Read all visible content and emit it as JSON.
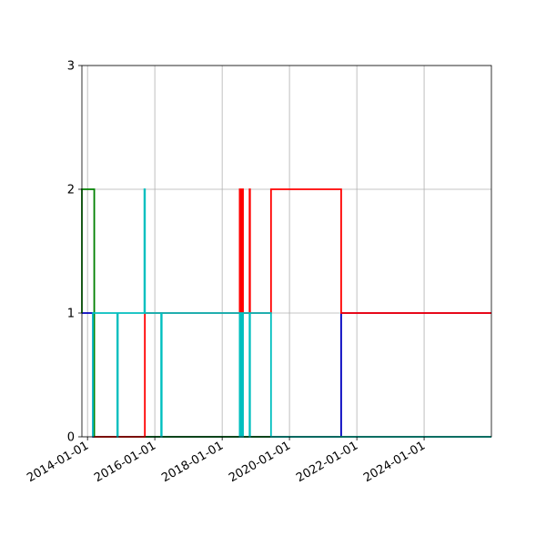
{
  "chart_data": {
    "type": "line",
    "step": true,
    "title": "",
    "xlabel": "",
    "ylabel": "",
    "grid": true,
    "legend": "none",
    "xlim": [
      "2013-11-01",
      "2025-12-31"
    ],
    "ylim": [
      0,
      3
    ],
    "x_ticks": [
      "2014-01-01",
      "2016-01-01",
      "2018-01-01",
      "2020-01-01",
      "2022-01-01",
      "2024-01-01"
    ],
    "y_ticks": [
      "0",
      "1",
      "2",
      "3"
    ],
    "series": [
      {
        "color": "#0000bf",
        "points": [
          [
            "2013-11-01",
            1
          ],
          [
            "2014-03-01",
            1
          ],
          [
            "2014-03-01",
            0
          ],
          [
            "2021-07-15",
            0
          ],
          [
            "2021-07-15",
            1
          ],
          [
            "2025-12-31",
            1
          ]
        ]
      },
      {
        "color": "#008000",
        "points": [
          [
            "2013-11-01",
            1
          ],
          [
            "2013-11-01",
            2
          ],
          [
            "2014-03-15",
            2
          ],
          [
            "2014-03-15",
            0
          ],
          [
            "2025-12-31",
            0
          ]
        ]
      },
      {
        "color": "#ff0000",
        "points": [
          [
            "2014-03-15",
            0
          ],
          [
            "2015-09-15",
            0
          ],
          [
            "2015-09-15",
            1
          ],
          [
            "2018-07-10",
            1
          ],
          [
            "2018-07-10",
            2
          ],
          [
            "2018-07-14",
            2
          ],
          [
            "2018-07-14",
            1
          ],
          [
            "2018-07-18",
            1
          ],
          [
            "2018-07-18",
            2
          ],
          [
            "2018-07-22",
            2
          ],
          [
            "2018-07-22",
            1
          ],
          [
            "2018-07-26",
            1
          ],
          [
            "2018-07-26",
            2
          ],
          [
            "2018-07-30",
            2
          ],
          [
            "2018-07-30",
            1
          ],
          [
            "2018-08-03",
            1
          ],
          [
            "2018-08-03",
            2
          ],
          [
            "2018-08-07",
            2
          ],
          [
            "2018-08-07",
            1
          ],
          [
            "2018-08-11",
            1
          ],
          [
            "2018-08-11",
            2
          ],
          [
            "2018-08-15",
            2
          ],
          [
            "2018-08-15",
            1
          ],
          [
            "2018-10-25",
            1
          ],
          [
            "2018-10-25",
            2
          ],
          [
            "2018-10-30",
            2
          ],
          [
            "2018-10-30",
            1
          ],
          [
            "2019-06-15",
            1
          ],
          [
            "2019-06-15",
            2
          ],
          [
            "2021-07-15",
            2
          ],
          [
            "2021-07-15",
            1
          ],
          [
            "2025-12-31",
            1
          ]
        ]
      },
      {
        "color": "#00bfbf",
        "points": [
          [
            "2014-03-01",
            0
          ],
          [
            "2014-03-01",
            1
          ],
          [
            "2014-11-20",
            1
          ],
          [
            "2014-11-20",
            0
          ],
          [
            "2014-11-26",
            0
          ],
          [
            "2014-11-26",
            1
          ],
          [
            "2015-09-10",
            1
          ],
          [
            "2015-09-10",
            2
          ],
          [
            "2015-09-16",
            2
          ],
          [
            "2015-09-16",
            1
          ],
          [
            "2016-03-10",
            1
          ],
          [
            "2016-03-10",
            0
          ],
          [
            "2016-03-16",
            0
          ],
          [
            "2016-03-16",
            1
          ],
          [
            "2018-07-10",
            1
          ],
          [
            "2018-07-10",
            0
          ],
          [
            "2018-07-14",
            0
          ],
          [
            "2018-07-14",
            1
          ],
          [
            "2018-07-18",
            1
          ],
          [
            "2018-07-18",
            0
          ],
          [
            "2018-07-22",
            0
          ],
          [
            "2018-07-22",
            1
          ],
          [
            "2018-07-26",
            1
          ],
          [
            "2018-07-26",
            0
          ],
          [
            "2018-07-30",
            0
          ],
          [
            "2018-07-30",
            1
          ],
          [
            "2018-08-03",
            1
          ],
          [
            "2018-08-03",
            0
          ],
          [
            "2018-08-07",
            0
          ],
          [
            "2018-08-07",
            1
          ],
          [
            "2018-08-11",
            1
          ],
          [
            "2018-08-11",
            0
          ],
          [
            "2018-08-15",
            0
          ],
          [
            "2018-08-15",
            1
          ],
          [
            "2018-10-25",
            1
          ],
          [
            "2018-10-25",
            0
          ],
          [
            "2018-10-30",
            0
          ],
          [
            "2018-10-30",
            1
          ],
          [
            "2019-06-15",
            1
          ],
          [
            "2019-06-15",
            0
          ],
          [
            "2025-12-31",
            0
          ]
        ]
      }
    ]
  }
}
